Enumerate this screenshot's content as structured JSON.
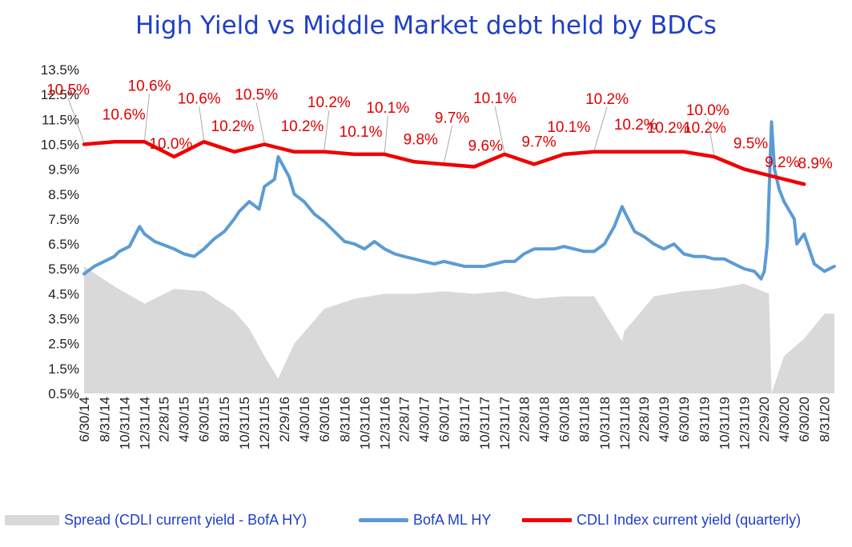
{
  "chart_data": {
    "type": "line",
    "title": "High Yield  vs  Middle Market debt held by BDCs",
    "ylim": [
      0.5,
      13.5
    ],
    "y_ticks": [
      "0.5%",
      "1.5%",
      "2.5%",
      "3.5%",
      "4.5%",
      "5.5%",
      "6.5%",
      "7.5%",
      "8.5%",
      "9.5%",
      "10.5%",
      "11.5%",
      "12.5%",
      "13.5%"
    ],
    "x_ticks": [
      "6/30/14",
      "8/31/14",
      "10/31/14",
      "12/31/14",
      "2/28/15",
      "4/30/15",
      "6/30/15",
      "8/31/15",
      "10/31/15",
      "12/31/15",
      "2/29/16",
      "4/30/16",
      "6/30/16",
      "8/31/16",
      "10/31/16",
      "12/31/16",
      "2/28/17",
      "4/30/17",
      "6/30/17",
      "8/31/17",
      "10/31/17",
      "12/31/17",
      "2/28/18",
      "4/30/18",
      "6/30/18",
      "8/31/18",
      "10/31/18",
      "12/31/18",
      "2/28/19",
      "4/30/19",
      "6/30/19",
      "8/31/19",
      "10/31/19",
      "12/31/19",
      "2/29/20",
      "4/30/20",
      "6/30/20",
      "8/31/20"
    ],
    "grid": false,
    "legend": "bottom",
    "series": [
      {
        "name": "Spread (CDLI current yield - BofA HY)",
        "kind": "area",
        "color": "#d9d9d9",
        "x": [
          "2014-06-30",
          "2014-09-30",
          "2014-12-31",
          "2015-03-31",
          "2015-06-30",
          "2015-09-30",
          "2015-11-15",
          "2015-12-31",
          "2016-02-11",
          "2016-03-31",
          "2016-06-30",
          "2016-09-30",
          "2016-12-31",
          "2017-03-31",
          "2017-06-30",
          "2017-09-30",
          "2017-12-31",
          "2018-03-31",
          "2018-06-30",
          "2018-09-30",
          "2018-12-24",
          "2018-12-31",
          "2019-03-31",
          "2019-06-30",
          "2019-09-30",
          "2019-12-31",
          "2020-03-15",
          "2020-03-23",
          "2020-04-30",
          "2020-06-30",
          "2020-08-31",
          "2020-09-30"
        ],
        "values": [
          5.1,
          4.3,
          3.6,
          4.2,
          4.1,
          3.3,
          2.6,
          1.5,
          0.6,
          2.0,
          3.4,
          3.8,
          4.0,
          4.0,
          4.1,
          4.0,
          4.1,
          3.8,
          3.9,
          3.9,
          2.1,
          2.5,
          3.9,
          4.1,
          4.2,
          4.4,
          4.0,
          0.0,
          1.5,
          2.2,
          3.2,
          3.2
        ]
      },
      {
        "name": "BofA ML HY",
        "kind": "line",
        "color": "#5b9bd5",
        "x": [
          "2014-06-30",
          "2014-07-31",
          "2014-09-30",
          "2014-10-15",
          "2014-11-15",
          "2014-12-16",
          "2014-12-31",
          "2015-01-31",
          "2015-03-31",
          "2015-04-30",
          "2015-05-31",
          "2015-06-30",
          "2015-07-31",
          "2015-08-31",
          "2015-09-30",
          "2015-10-15",
          "2015-11-15",
          "2015-12-15",
          "2015-12-31",
          "2016-01-31",
          "2016-02-11",
          "2016-03-15",
          "2016-03-31",
          "2016-04-30",
          "2016-05-31",
          "2016-06-30",
          "2016-07-31",
          "2016-08-31",
          "2016-09-30",
          "2016-10-31",
          "2016-11-30",
          "2016-12-31",
          "2017-01-31",
          "2017-02-28",
          "2017-03-31",
          "2017-04-30",
          "2017-05-31",
          "2017-06-30",
          "2017-07-31",
          "2017-08-31",
          "2017-09-30",
          "2017-10-31",
          "2017-11-30",
          "2017-12-31",
          "2018-01-31",
          "2018-02-28",
          "2018-03-31",
          "2018-04-30",
          "2018-05-31",
          "2018-06-30",
          "2018-07-31",
          "2018-08-31",
          "2018-09-30",
          "2018-10-31",
          "2018-11-30",
          "2018-12-24",
          "2018-12-31",
          "2019-01-31",
          "2019-02-28",
          "2019-03-31",
          "2019-04-30",
          "2019-05-31",
          "2019-06-30",
          "2019-07-31",
          "2019-08-31",
          "2019-09-30",
          "2019-10-31",
          "2019-11-30",
          "2019-12-31",
          "2020-01-31",
          "2020-02-20",
          "2020-03-01",
          "2020-03-10",
          "2020-03-23",
          "2020-04-01",
          "2020-04-15",
          "2020-04-30",
          "2020-05-31",
          "2020-06-08",
          "2020-06-30",
          "2020-07-31",
          "2020-08-31",
          "2020-09-30"
        ],
        "values": [
          5.3,
          5.6,
          6.0,
          6.2,
          6.4,
          7.2,
          6.9,
          6.6,
          6.3,
          6.1,
          6.0,
          6.3,
          6.7,
          7.0,
          7.5,
          7.8,
          8.2,
          7.9,
          8.8,
          9.1,
          10.0,
          9.2,
          8.5,
          8.2,
          7.7,
          7.4,
          7.0,
          6.6,
          6.5,
          6.3,
          6.6,
          6.3,
          6.1,
          6.0,
          5.9,
          5.8,
          5.7,
          5.8,
          5.7,
          5.6,
          5.6,
          5.6,
          5.7,
          5.8,
          5.8,
          6.1,
          6.3,
          6.3,
          6.3,
          6.4,
          6.3,
          6.2,
          6.2,
          6.5,
          7.2,
          8.0,
          7.8,
          7.0,
          6.8,
          6.5,
          6.3,
          6.5,
          6.1,
          6.0,
          6.0,
          5.9,
          5.9,
          5.7,
          5.5,
          5.4,
          5.1,
          5.4,
          6.5,
          11.4,
          9.5,
          8.7,
          8.2,
          7.5,
          6.5,
          6.9,
          5.7,
          5.4,
          5.6
        ]
      },
      {
        "name": "CDLI Index current yield (quarterly)",
        "kind": "line",
        "color": "#f00000",
        "x": [
          "2014-06-30",
          "2014-09-30",
          "2014-12-31",
          "2015-03-31",
          "2015-06-30",
          "2015-09-30",
          "2015-12-31",
          "2016-03-31",
          "2016-06-30",
          "2016-09-30",
          "2016-12-31",
          "2017-03-31",
          "2017-06-30",
          "2017-09-30",
          "2017-12-31",
          "2018-03-31",
          "2018-06-30",
          "2018-09-30",
          "2018-12-31",
          "2019-03-31",
          "2019-06-30",
          "2019-09-30",
          "2019-12-31",
          "2020-03-31",
          "2020-06-30"
        ],
        "values": [
          10.5,
          10.6,
          10.6,
          10.0,
          10.6,
          10.2,
          10.5,
          10.2,
          10.2,
          10.1,
          10.1,
          9.8,
          9.7,
          9.6,
          10.1,
          9.7,
          10.1,
          10.2,
          10.2,
          10.2,
          10.2,
          10.0,
          9.5,
          9.2,
          8.9
        ],
        "labels": [
          "10.5%",
          "10.6%",
          "10.6%",
          "10.0%",
          "10.6%",
          "10.2%",
          "10.5%",
          "10.2%",
          "10.2%",
          "10.1%",
          "10.1%",
          "9.8%",
          "9.7%",
          "9.6%",
          "10.1%",
          "9.7%",
          "10.1%",
          "10.2%",
          "10.2%",
          "10.2%",
          "10.2%",
          "10.0%",
          "9.5%",
          "9.2%",
          "8.9%"
        ]
      }
    ]
  }
}
